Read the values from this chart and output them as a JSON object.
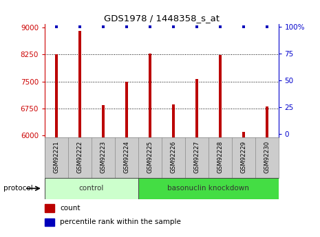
{
  "title": "GDS1978 / 1448358_s_at",
  "samples": [
    "GSM92221",
    "GSM92222",
    "GSM92223",
    "GSM92224",
    "GSM92225",
    "GSM92226",
    "GSM92227",
    "GSM92228",
    "GSM92229",
    "GSM92230"
  ],
  "counts": [
    8250,
    8900,
    6850,
    7500,
    8280,
    6870,
    7560,
    8240,
    6100,
    6800
  ],
  "percentile": [
    100,
    100,
    100,
    100,
    100,
    100,
    100,
    100,
    100,
    100
  ],
  "ylim_left": [
    5950,
    9100
  ],
  "ylim_right": [
    -3,
    103
  ],
  "yticks_left": [
    6000,
    6750,
    7500,
    8250,
    9000
  ],
  "yticks_right": [
    0,
    25,
    50,
    75,
    100
  ],
  "bar_color": "#bb0000",
  "scatter_color": "#0000bb",
  "protocol_groups": [
    {
      "label": "control",
      "start": 0,
      "end": 4,
      "color": "#ccffcc"
    },
    {
      "label": "basonuclin knockdown",
      "start": 4,
      "end": 10,
      "color": "#44dd44"
    }
  ],
  "protocol_label": "protocol",
  "legend_items": [
    {
      "label": "count",
      "color": "#bb0000"
    },
    {
      "label": "percentile rank within the sample",
      "color": "#0000bb"
    }
  ],
  "background_color": "#ffffff",
  "left_axis_color": "#cc0000",
  "right_axis_color": "#0000cc",
  "bar_width": 0.12,
  "grid_lines": [
    6750,
    7500,
    8250
  ],
  "xlabels_bg": "#cccccc",
  "n_samples": 10
}
